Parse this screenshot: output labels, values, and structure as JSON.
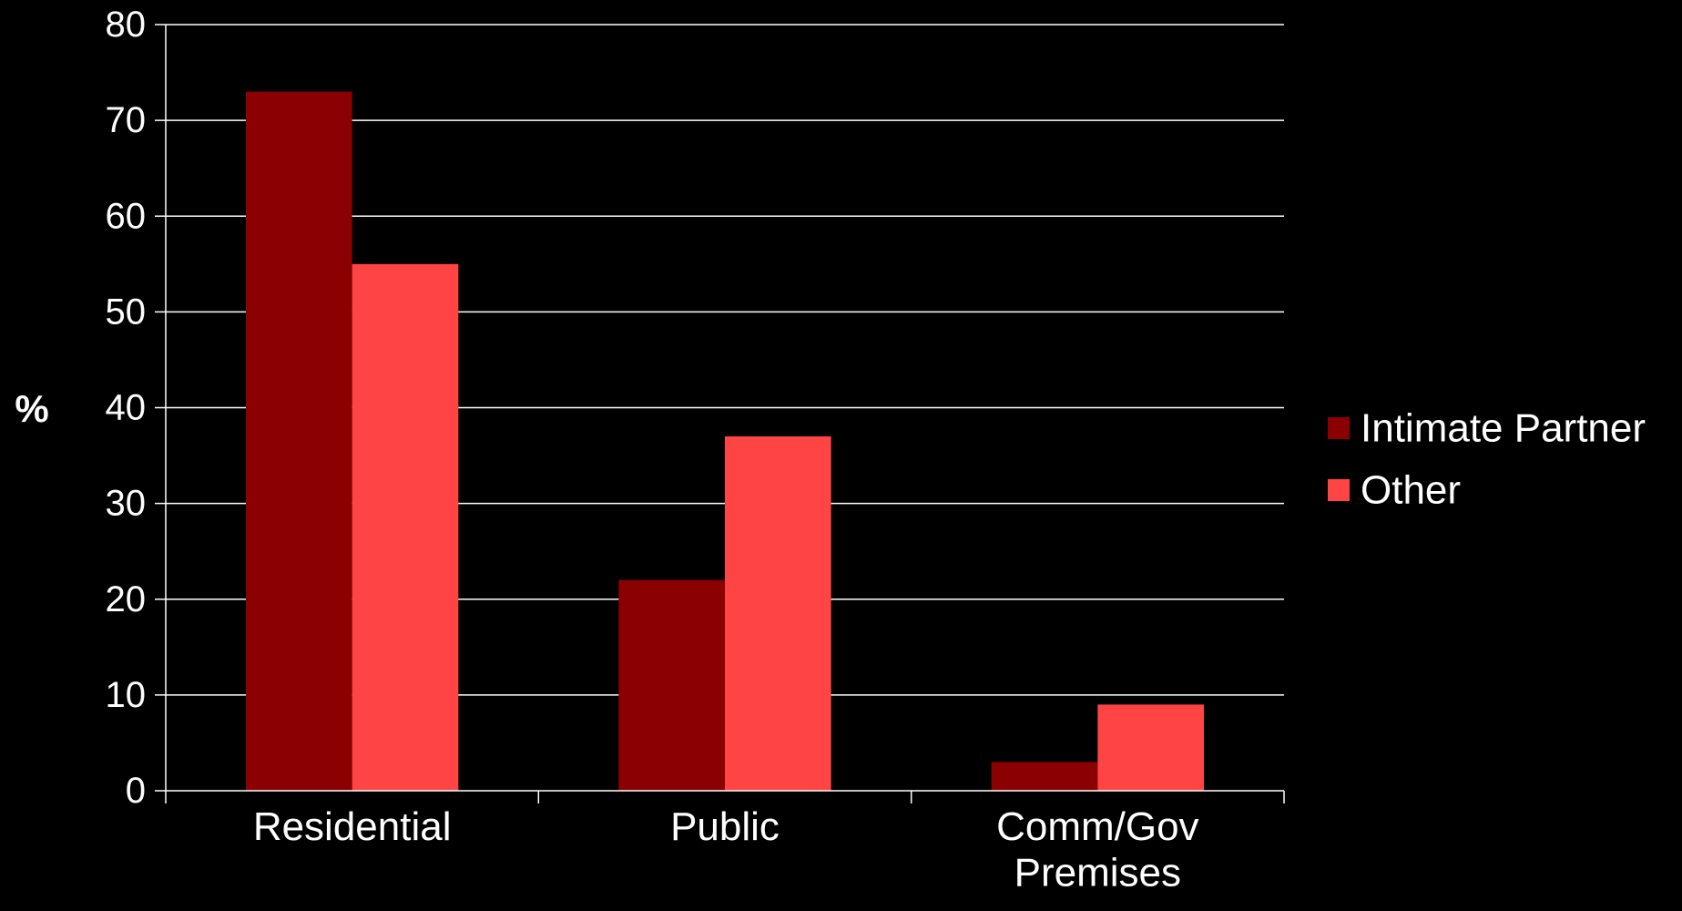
{
  "chart_data": {
    "type": "bar",
    "categories": [
      [
        "Residential"
      ],
      [
        "Public"
      ],
      [
        "Comm/Gov",
        "Premises"
      ]
    ],
    "series": [
      {
        "name": "Intimate Partner",
        "values": [
          73,
          22,
          3
        ],
        "color": "#8B0000"
      },
      {
        "name": "Other",
        "values": [
          55,
          37,
          9
        ],
        "color": "#FF4444"
      }
    ],
    "title": "",
    "xlabel": "",
    "ylabel": "%",
    "ylim": [
      0,
      80
    ],
    "yticks": [
      0,
      10,
      20,
      30,
      40,
      50,
      60,
      70,
      80
    ],
    "grid": true,
    "legend_position": "right",
    "background": "#000000",
    "foreground": "#ffffff"
  }
}
